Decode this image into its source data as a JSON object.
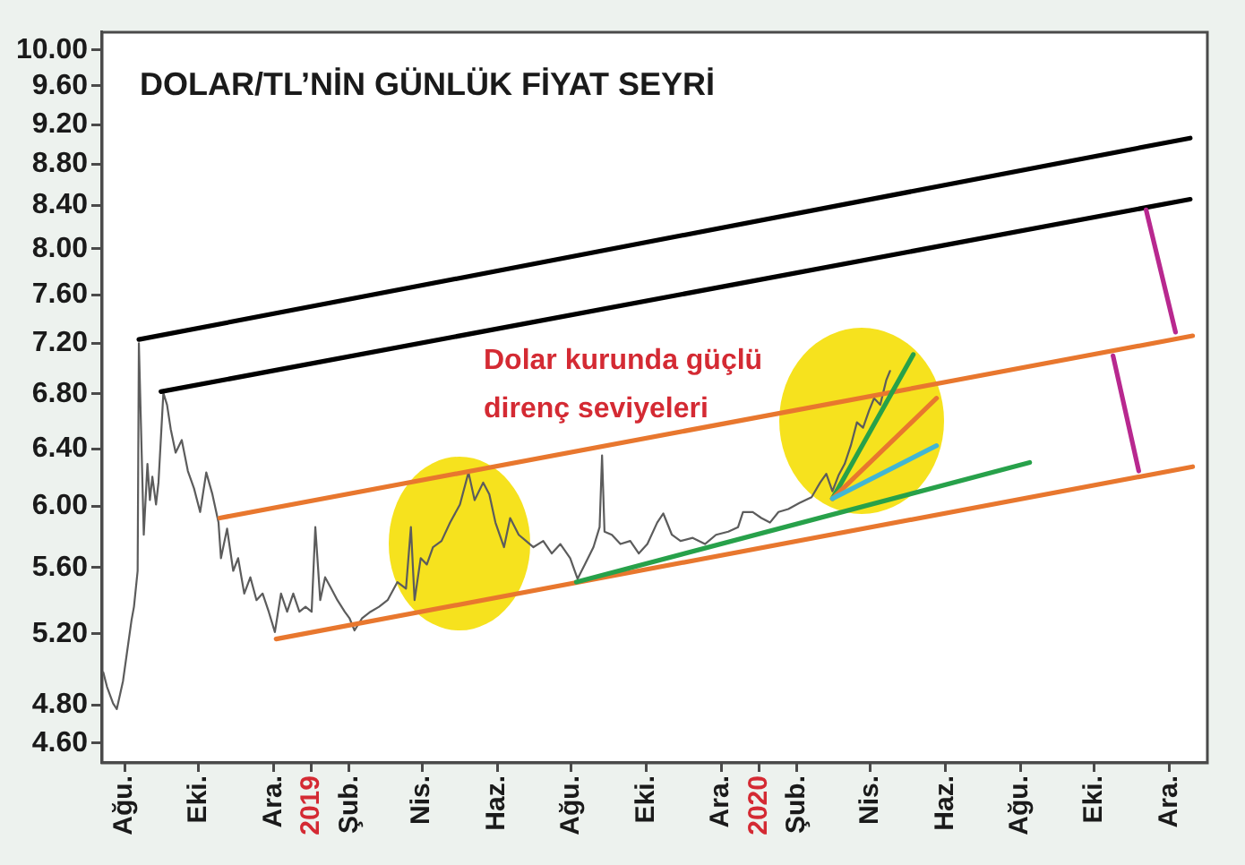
{
  "chart_data": {
    "type": "line",
    "title": "DOLAR/TL’NİN GÜNLÜK FİYAT SEYRİ",
    "annotations": [
      "Dolar kurunda güçlü\ndirenç seviyeleri"
    ],
    "log": "y",
    "marker": "none",
    "xlim": [
      "2018-07-14",
      "2021-01-01"
    ],
    "xticks": [
      {
        "value": "2018-08-01",
        "label": "Ağu."
      },
      {
        "value": "2018-10-01",
        "label": "Eki."
      },
      {
        "value": "2018-12-01",
        "label": "Ara."
      },
      {
        "value": "2019-01-01",
        "label": "2019"
      },
      {
        "value": "2019-02-01",
        "label": "Şub."
      },
      {
        "value": "2019-04-01",
        "label": "Nis."
      },
      {
        "value": "2019-06-01",
        "label": "Haz."
      },
      {
        "value": "2019-08-01",
        "label": "Ağu."
      },
      {
        "value": "2019-10-01",
        "label": "Eki."
      },
      {
        "value": "2019-12-01",
        "label": "Ara."
      },
      {
        "value": "2020-01-01",
        "label": "2020"
      },
      {
        "value": "2020-02-01",
        "label": "Şub."
      },
      {
        "value": "2020-04-01",
        "label": "Nis."
      },
      {
        "value": "2020-06-01",
        "label": "Haz."
      },
      {
        "value": "2020-08-01",
        "label": "Ağu."
      },
      {
        "value": "2020-10-01",
        "label": "Eki."
      },
      {
        "value": "2020-12-01",
        "label": "Ara."
      }
    ],
    "ylim": [
      4.52,
      10.2
    ],
    "yticks": [
      {
        "value": 4.6,
        "label": "4.60"
      },
      {
        "value": 4.8,
        "label": "4.80"
      },
      {
        "value": 5.2,
        "label": "5.20"
      },
      {
        "value": 5.6,
        "label": "5.60"
      },
      {
        "value": 6.0,
        "label": "6.00"
      },
      {
        "value": 6.4,
        "label": "6.40"
      },
      {
        "value": 6.8,
        "label": "6.80"
      },
      {
        "value": 7.2,
        "label": "7.20"
      },
      {
        "value": 7.6,
        "label": "7.60"
      },
      {
        "value": 8.0,
        "label": "8.00"
      },
      {
        "value": 8.4,
        "label": "8.40"
      },
      {
        "value": 8.8,
        "label": "8.80"
      },
      {
        "value": 9.2,
        "label": "9.20"
      },
      {
        "value": 9.6,
        "label": "9.60"
      },
      {
        "value": 10.0,
        "label": "10.00"
      }
    ],
    "series": [
      {
        "color": "#5c5c5c",
        "x": [
          "2018-07-15",
          "2018-07-18",
          "2018-07-23",
          "2018-07-26",
          "2018-07-31",
          "2018-08-07",
          "2018-08-09",
          "2018-08-12",
          "2018-08-13",
          "2018-08-17",
          "2018-08-20",
          "2018-08-22",
          "2018-08-24",
          "2018-08-27",
          "2018-08-29",
          "2018-09-02",
          "2018-09-05",
          "2018-09-08",
          "2018-09-12",
          "2018-09-17",
          "2018-09-22",
          "2018-09-27",
          "2018-10-02",
          "2018-10-07",
          "2018-10-12",
          "2018-10-17",
          "2018-10-19",
          "2018-10-24",
          "2018-10-29",
          "2018-11-02",
          "2018-11-07",
          "2018-11-12",
          "2018-11-17",
          "2018-11-22",
          "2018-11-27",
          "2018-12-02",
          "2018-12-07",
          "2018-12-12",
          "2018-12-17",
          "2018-12-22",
          "2018-12-27",
          "2019-01-01",
          "2019-01-04",
          "2019-01-08",
          "2019-01-12",
          "2019-01-17",
          "2019-01-22",
          "2019-01-28",
          "2019-02-01",
          "2019-02-05",
          "2019-02-11",
          "2019-02-18",
          "2019-02-25",
          "2019-03-04",
          "2019-03-12",
          "2019-03-19",
          "2019-03-23",
          "2019-03-26",
          "2019-03-31",
          "2019-04-05",
          "2019-04-10",
          "2019-04-17",
          "2019-04-24",
          "2019-05-02",
          "2019-05-09",
          "2019-05-14",
          "2019-05-21",
          "2019-05-26",
          "2019-05-31",
          "2019-06-07",
          "2019-06-12",
          "2019-06-19",
          "2019-06-25",
          "2019-07-01",
          "2019-07-09",
          "2019-07-16",
          "2019-07-23",
          "2019-07-31",
          "2019-08-06",
          "2019-08-12",
          "2019-08-19",
          "2019-08-24",
          "2019-08-26",
          "2019-08-28",
          "2019-09-03",
          "2019-09-10",
          "2019-09-18",
          "2019-09-25",
          "2019-10-02",
          "2019-10-10",
          "2019-10-15",
          "2019-10-22",
          "2019-10-29",
          "2019-11-08",
          "2019-11-18",
          "2019-11-27",
          "2019-12-07",
          "2019-12-15",
          "2019-12-19",
          "2019-12-27",
          "2020-01-03",
          "2020-01-10",
          "2020-01-17",
          "2020-01-25",
          "2020-02-03",
          "2020-02-13",
          "2020-02-20",
          "2020-02-25",
          "2020-03-01",
          "2020-03-06",
          "2020-03-11",
          "2020-03-16",
          "2020-03-21",
          "2020-03-26",
          "2020-03-31",
          "2020-04-04",
          "2020-04-09",
          "2020-04-14",
          "2020-04-17"
        ],
        "values": [
          4.98,
          4.9,
          4.81,
          4.78,
          4.93,
          5.28,
          5.36,
          5.58,
          7.2,
          5.81,
          6.29,
          6.04,
          6.2,
          6.01,
          6.16,
          6.81,
          6.72,
          6.54,
          6.37,
          6.46,
          6.24,
          6.12,
          5.96,
          6.23,
          6.08,
          5.89,
          5.66,
          5.85,
          5.58,
          5.66,
          5.44,
          5.54,
          5.4,
          5.44,
          5.33,
          5.21,
          5.44,
          5.33,
          5.44,
          5.33,
          5.36,
          5.33,
          5.86,
          5.4,
          5.54,
          5.47,
          5.4,
          5.33,
          5.29,
          5.22,
          5.29,
          5.33,
          5.36,
          5.4,
          5.51,
          5.47,
          5.86,
          5.4,
          5.66,
          5.62,
          5.73,
          5.77,
          5.89,
          6.01,
          6.23,
          6.04,
          6.16,
          6.08,
          5.89,
          5.73,
          5.92,
          5.81,
          5.77,
          5.73,
          5.77,
          5.69,
          5.75,
          5.66,
          5.53,
          5.62,
          5.73,
          5.86,
          6.35,
          5.83,
          5.81,
          5.75,
          5.77,
          5.69,
          5.75,
          5.89,
          5.95,
          5.81,
          5.77,
          5.79,
          5.75,
          5.81,
          5.83,
          5.86,
          5.96,
          5.96,
          5.92,
          5.89,
          5.96,
          5.98,
          6.02,
          6.06,
          6.16,
          6.22,
          6.1,
          6.21,
          6.29,
          6.42,
          6.59,
          6.55,
          6.68,
          6.77,
          6.72,
          6.91,
          6.98
        ]
      },
      {
        "color": "#000000",
        "x": [
          "2018-08-13",
          "2020-12-18"
        ],
        "values": [
          7.23,
          9.06
        ]
      },
      {
        "color": "#000000",
        "x": [
          "2018-08-31",
          "2020-12-18"
        ],
        "values": [
          6.82,
          8.46
        ]
      },
      {
        "color": "#e8772e",
        "x": [
          "2018-10-18",
          "2020-12-20"
        ],
        "values": [
          5.92,
          7.26
        ]
      },
      {
        "color": "#e8772e",
        "x": [
          "2018-12-03",
          "2020-12-20"
        ],
        "values": [
          5.17,
          6.27
        ]
      },
      {
        "color": "#27a14a",
        "x": [
          "2019-08-05",
          "2020-08-09"
        ],
        "values": [
          5.51,
          6.3
        ]
      },
      {
        "color": "#27a14a",
        "x": [
          "2020-03-01",
          "2020-05-06"
        ],
        "values": [
          6.05,
          7.11
        ]
      },
      {
        "color": "#e8772e",
        "x": [
          "2020-03-01",
          "2020-05-25"
        ],
        "values": [
          6.05,
          6.77
        ]
      },
      {
        "color": "#41b6d4",
        "x": [
          "2020-03-01",
          "2020-05-25"
        ],
        "values": [
          6.05,
          6.42
        ]
      },
      {
        "color": "#b8288f",
        "x": [
          "2020-11-12",
          "2020-12-06"
        ],
        "values": [
          8.36,
          7.29
        ]
      },
      {
        "color": "#b8288f",
        "x": [
          "2020-10-16",
          "2020-11-06"
        ],
        "values": [
          7.1,
          6.24
        ]
      }
    ]
  }
}
